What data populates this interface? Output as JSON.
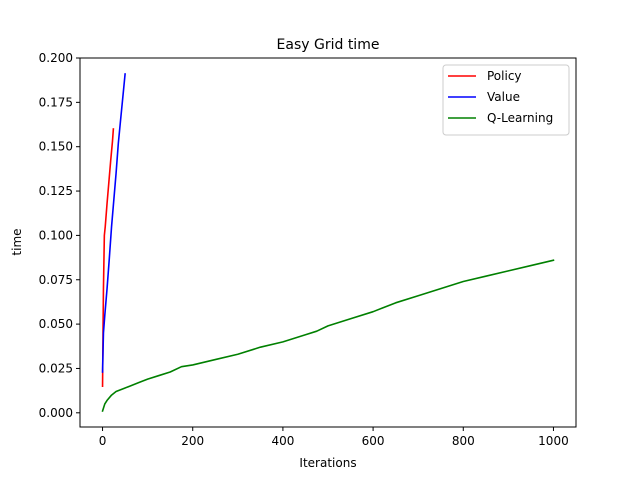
{
  "chart_data": {
    "type": "line",
    "title": "Easy Grid time",
    "xlabel": "Iterations",
    "ylabel": "time",
    "xlim": [
      -50,
      1050
    ],
    "ylim": [
      -0.008,
      0.2
    ],
    "x_ticks": [
      0,
      200,
      400,
      600,
      800,
      1000
    ],
    "x_tick_labels": [
      "0",
      "200",
      "400",
      "600",
      "800",
      "1000"
    ],
    "y_ticks": [
      0.0,
      0.025,
      0.05,
      0.075,
      0.1,
      0.125,
      0.15,
      0.175,
      0.2
    ],
    "y_tick_labels": [
      "0.000",
      "0.025",
      "0.050",
      "0.075",
      "0.100",
      "0.125",
      "0.150",
      "0.175",
      "0.200"
    ],
    "grid": false,
    "legend_position": "top-right",
    "series": [
      {
        "name": "Policy",
        "color": "#ff0000",
        "x": [
          0,
          1,
          2,
          4,
          6,
          10,
          14,
          18,
          22,
          24
        ],
        "y": [
          0.015,
          0.045,
          0.07,
          0.1,
          0.105,
          0.118,
          0.13,
          0.142,
          0.153,
          0.16
        ]
      },
      {
        "name": "Value",
        "color": "#0000ff",
        "x": [
          0,
          2,
          5,
          10,
          15,
          20,
          25,
          30,
          35,
          40,
          45,
          50
        ],
        "y": [
          0.023,
          0.045,
          0.055,
          0.07,
          0.087,
          0.105,
          0.12,
          0.135,
          0.152,
          0.165,
          0.178,
          0.191
        ]
      },
      {
        "name": "Q-Learning",
        "color": "#008000",
        "x": [
          0,
          5,
          10,
          20,
          30,
          40,
          50,
          60,
          80,
          100,
          125,
          150,
          175,
          200,
          250,
          300,
          350,
          400,
          450,
          475,
          500,
          550,
          600,
          620,
          650,
          700,
          750,
          800,
          850,
          900,
          950,
          1000
        ],
        "y": [
          0.001,
          0.005,
          0.007,
          0.01,
          0.012,
          0.013,
          0.014,
          0.015,
          0.017,
          0.019,
          0.021,
          0.023,
          0.026,
          0.027,
          0.03,
          0.033,
          0.037,
          0.04,
          0.044,
          0.046,
          0.049,
          0.053,
          0.057,
          0.059,
          0.062,
          0.066,
          0.07,
          0.074,
          0.077,
          0.08,
          0.083,
          0.086
        ]
      }
    ]
  }
}
